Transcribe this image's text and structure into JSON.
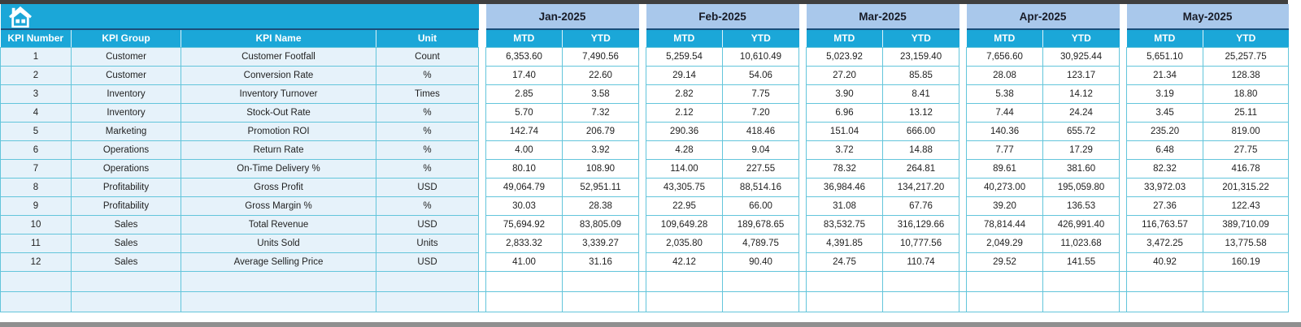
{
  "app": {
    "corner_button": "home"
  },
  "table": {
    "kpi_headers": [
      "KPI Number",
      "KPI Group",
      "KPI Name",
      "Unit"
    ],
    "months": [
      "Jan-2025",
      "Feb-2025",
      "Mar-2025",
      "Apr-2025",
      "May-2025"
    ],
    "mtd_label": "MTD",
    "ytd_label": "YTD",
    "rows": [
      {
        "number": "1",
        "group": "Customer",
        "name": "Customer Footfall",
        "unit": "Count",
        "values": [
          "6,353.60",
          "7,490.56",
          "5,259.54",
          "10,610.49",
          "5,023.92",
          "23,159.40",
          "7,656.60",
          "30,925.44",
          "5,651.10",
          "25,257.75"
        ]
      },
      {
        "number": "2",
        "group": "Customer",
        "name": "Conversion Rate",
        "unit": "%",
        "values": [
          "17.40",
          "22.60",
          "29.14",
          "54.06",
          "27.20",
          "85.85",
          "28.08",
          "123.17",
          "21.34",
          "128.38"
        ]
      },
      {
        "number": "3",
        "group": "Inventory",
        "name": "Inventory Turnover",
        "unit": "Times",
        "values": [
          "2.85",
          "3.58",
          "2.82",
          "7.75",
          "3.90",
          "8.41",
          "5.38",
          "14.12",
          "3.19",
          "18.80"
        ]
      },
      {
        "number": "4",
        "group": "Inventory",
        "name": "Stock-Out Rate",
        "unit": "%",
        "values": [
          "5.70",
          "7.32",
          "2.12",
          "7.20",
          "6.96",
          "13.12",
          "7.44",
          "24.24",
          "3.45",
          "25.11"
        ]
      },
      {
        "number": "5",
        "group": "Marketing",
        "name": "Promotion ROI",
        "unit": "%",
        "values": [
          "142.74",
          "206.79",
          "290.36",
          "418.46",
          "151.04",
          "666.00",
          "140.36",
          "655.72",
          "235.20",
          "819.00"
        ]
      },
      {
        "number": "6",
        "group": "Operations",
        "name": "Return Rate",
        "unit": "%",
        "values": [
          "4.00",
          "3.92",
          "4.28",
          "9.04",
          "3.72",
          "14.88",
          "7.77",
          "17.29",
          "6.48",
          "27.75"
        ]
      },
      {
        "number": "7",
        "group": "Operations",
        "name": "On-Time Delivery %",
        "unit": "%",
        "values": [
          "80.10",
          "108.90",
          "114.00",
          "227.55",
          "78.32",
          "264.81",
          "89.61",
          "381.60",
          "82.32",
          "416.78"
        ]
      },
      {
        "number": "8",
        "group": "Profitability",
        "name": "Gross Profit",
        "unit": "USD",
        "values": [
          "49,064.79",
          "52,951.11",
          "43,305.75",
          "88,514.16",
          "36,984.46",
          "134,217.20",
          "40,273.00",
          "195,059.80",
          "33,972.03",
          "201,315.22"
        ]
      },
      {
        "number": "9",
        "group": "Profitability",
        "name": "Gross Margin %",
        "unit": "%",
        "values": [
          "30.03",
          "28.38",
          "22.95",
          "66.00",
          "31.08",
          "67.76",
          "39.20",
          "136.53",
          "27.36",
          "122.43"
        ]
      },
      {
        "number": "10",
        "group": "Sales",
        "name": "Total Revenue",
        "unit": "USD",
        "values": [
          "75,694.92",
          "83,805.09",
          "109,649.28",
          "189,678.65",
          "83,532.75",
          "316,129.66",
          "78,814.44",
          "426,991.40",
          "116,763.57",
          "389,710.09"
        ]
      },
      {
        "number": "11",
        "group": "Sales",
        "name": "Units Sold",
        "unit": "Units",
        "values": [
          "2,833.32",
          "3,339.27",
          "2,035.80",
          "4,789.75",
          "4,391.85",
          "10,777.56",
          "2,049.29",
          "11,023.68",
          "3,472.25",
          "13,775.58"
        ]
      },
      {
        "number": "12",
        "group": "Sales",
        "name": "Average Selling Price",
        "unit": "USD",
        "values": [
          "41.00",
          "31.16",
          "42.12",
          "90.40",
          "24.75",
          "110.74",
          "29.52",
          "141.55",
          "40.92",
          "160.19"
        ]
      }
    ],
    "empty_row_count": 2
  },
  "colors": {
    "header_cyan": "#1ba7d8",
    "month_band_blue": "#a9c8eb",
    "row_fill_blue": "#e6f2fa",
    "grid_cyan": "#63c5db",
    "divider_navy": "#1a4e79",
    "top_strip": "#3f3f3f",
    "bottom_strip": "#8f8f8f"
  }
}
